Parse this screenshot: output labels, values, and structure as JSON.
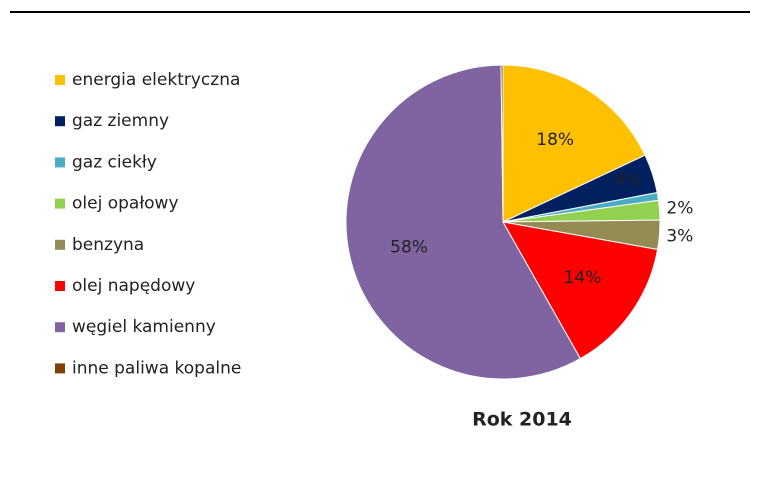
{
  "chart_data": {
    "type": "pie",
    "title": "Rok 2014",
    "categories": [
      "energia elektryczna",
      "gaz ziemny",
      "gaz ciekły",
      "olej opałowy",
      "benzyna",
      "olej napędowy",
      "węgiel kamienny",
      "inne paliwa kopalne"
    ],
    "values": [
      18,
      4,
      0.8,
      2,
      3,
      14,
      58,
      0.2
    ],
    "value_labels": [
      "18%",
      "4%",
      null,
      "2%",
      "3%",
      "14%",
      "58%",
      null
    ],
    "colors": [
      "#ffc000",
      "#002060",
      "#4bacc6",
      "#92d050",
      "#948a54",
      "#ff0000",
      "#8064a2",
      "#7f3f00"
    ],
    "legend": "left"
  }
}
